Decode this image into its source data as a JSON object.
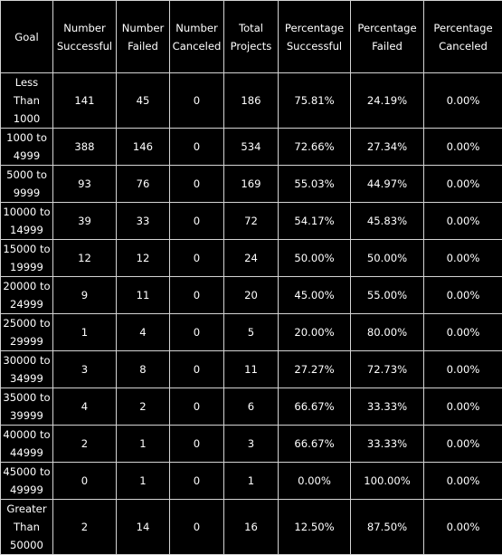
{
  "columns": [
    [
      "Goal"
    ],
    [
      "Number",
      "Successful"
    ],
    [
      "Number",
      "Failed"
    ],
    [
      "Number",
      "Canceled"
    ],
    [
      "Total",
      "Projects"
    ],
    [
      "Percentage",
      "Successful"
    ],
    [
      "Percentage",
      "Failed"
    ],
    [
      "Percentage",
      "Canceled"
    ]
  ],
  "rows": [
    {
      "goal": [
        "Less",
        "Than",
        "1000"
      ],
      "successful": "141",
      "failed": "45",
      "canceled": "0",
      "total": "186",
      "pct_successful": "75.81%",
      "pct_failed": "24.19%",
      "pct_canceled": "0.00%"
    },
    {
      "goal": [
        "1000 to",
        "4999"
      ],
      "successful": "388",
      "failed": "146",
      "canceled": "0",
      "total": "534",
      "pct_successful": "72.66%",
      "pct_failed": "27.34%",
      "pct_canceled": "0.00%"
    },
    {
      "goal": [
        "5000 to",
        "9999"
      ],
      "successful": "93",
      "failed": "76",
      "canceled": "0",
      "total": "169",
      "pct_successful": "55.03%",
      "pct_failed": "44.97%",
      "pct_canceled": "0.00%"
    },
    {
      "goal": [
        "10000 to",
        "14999"
      ],
      "successful": "39",
      "failed": "33",
      "canceled": "0",
      "total": "72",
      "pct_successful": "54.17%",
      "pct_failed": "45.83%",
      "pct_canceled": "0.00%"
    },
    {
      "goal": [
        "15000 to",
        "19999"
      ],
      "successful": "12",
      "failed": "12",
      "canceled": "0",
      "total": "24",
      "pct_successful": "50.00%",
      "pct_failed": "50.00%",
      "pct_canceled": "0.00%"
    },
    {
      "goal": [
        "20000 to",
        "24999"
      ],
      "successful": "9",
      "failed": "11",
      "canceled": "0",
      "total": "20",
      "pct_successful": "45.00%",
      "pct_failed": "55.00%",
      "pct_canceled": "0.00%"
    },
    {
      "goal": [
        "25000 to",
        "29999"
      ],
      "successful": "1",
      "failed": "4",
      "canceled": "0",
      "total": "5",
      "pct_successful": "20.00%",
      "pct_failed": "80.00%",
      "pct_canceled": "0.00%"
    },
    {
      "goal": [
        "30000 to",
        "34999"
      ],
      "successful": "3",
      "failed": "8",
      "canceled": "0",
      "total": "11",
      "pct_successful": "27.27%",
      "pct_failed": "72.73%",
      "pct_canceled": "0.00%"
    },
    {
      "goal": [
        "35000 to",
        "39999"
      ],
      "successful": "4",
      "failed": "2",
      "canceled": "0",
      "total": "6",
      "pct_successful": "66.67%",
      "pct_failed": "33.33%",
      "pct_canceled": "0.00%"
    },
    {
      "goal": [
        "40000 to",
        "44999"
      ],
      "successful": "2",
      "failed": "1",
      "canceled": "0",
      "total": "3",
      "pct_successful": "66.67%",
      "pct_failed": "33.33%",
      "pct_canceled": "0.00%"
    },
    {
      "goal": [
        "45000 to",
        "49999"
      ],
      "successful": "0",
      "failed": "1",
      "canceled": "0",
      "total": "1",
      "pct_successful": "0.00%",
      "pct_failed": "100.00%",
      "pct_canceled": "0.00%"
    },
    {
      "goal": [
        "Greater",
        "Than",
        "50000"
      ],
      "successful": "2",
      "failed": "14",
      "canceled": "0",
      "total": "16",
      "pct_successful": "12.50%",
      "pct_failed": "87.50%",
      "pct_canceled": "0.00%"
    }
  ],
  "colors": {
    "background": "#000000",
    "text": "#ffffff",
    "grid": "#d4d4d4"
  }
}
